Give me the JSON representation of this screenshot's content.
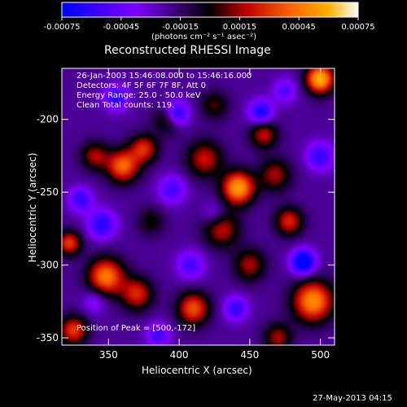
{
  "colorbar": {
    "ticks": [
      "-0.00075",
      "-0.00045",
      "-0.00015",
      "0.00015",
      "0.00045",
      "0.00075"
    ],
    "tick_values": [
      -0.00075,
      -0.00045,
      -0.00015,
      0.00015,
      0.00045,
      0.00075
    ],
    "unit_label": "(photons cm⁻² s⁻¹ asec⁻²)",
    "colors": [
      "#0000ff",
      "#7f00ff",
      "#000000",
      "#c00000",
      "#ff6a00",
      "#ffb000",
      "#ffffff"
    ]
  },
  "title": "Reconstructed RHESSI Image",
  "annotations": {
    "time_range": "26-Jan-2003 15:46:08.000 to 15:46:16.000",
    "detectors": "Detectors: 4F 5F 6F 7F 8F, Att 0",
    "energy": "Energy Range: 25.0 - 50.0 keV",
    "clean": "Clean    Total counts: 119.",
    "peak": "Position of Peak = [500,-172]"
  },
  "footer_timestamp": "27-May-2013 04:15",
  "chart_data": {
    "type": "heatmap",
    "title": "Reconstructed RHESSI Image",
    "xlabel": "Heliocentric X (arcsec)",
    "ylabel": "Heliocentric Y (arcsec)",
    "xlim": [
      317,
      510
    ],
    "ylim": [
      -355,
      -165
    ],
    "xticks": [
      350,
      400,
      450,
      500
    ],
    "yticks": [
      -200,
      -250,
      -300,
      -350
    ],
    "value_range": [
      -0.00075,
      0.00075
    ],
    "peak_position": [
      500,
      -172
    ],
    "blobs": [
      {
        "x": 500,
        "y": -172,
        "v": 0.00075,
        "s": 7
      },
      {
        "x": 442,
        "y": -247,
        "v": 0.0007,
        "s": 8
      },
      {
        "x": 418,
        "y": -227,
        "v": 0.00035,
        "s": 9
      },
      {
        "x": 430,
        "y": -275,
        "v": 0.00035,
        "s": 9
      },
      {
        "x": 360,
        "y": -232,
        "v": 0.00055,
        "s": 8
      },
      {
        "x": 375,
        "y": -220,
        "v": 0.0004,
        "s": 7
      },
      {
        "x": 340,
        "y": -225,
        "v": 0.0003,
        "s": 7
      },
      {
        "x": 348,
        "y": -308,
        "v": 0.0006,
        "s": 9
      },
      {
        "x": 370,
        "y": -320,
        "v": 0.0004,
        "s": 8
      },
      {
        "x": 322,
        "y": -285,
        "v": 0.00045,
        "s": 6
      },
      {
        "x": 325,
        "y": -345,
        "v": 0.00045,
        "s": 7
      },
      {
        "x": 410,
        "y": -330,
        "v": 0.0005,
        "s": 8
      },
      {
        "x": 495,
        "y": -325,
        "v": 0.00065,
        "s": 10
      },
      {
        "x": 478,
        "y": -270,
        "v": 0.0004,
        "s": 7
      },
      {
        "x": 468,
        "y": -238,
        "v": 0.0003,
        "s": 8
      },
      {
        "x": 460,
        "y": -210,
        "v": 0.00035,
        "s": 7
      },
      {
        "x": 392,
        "y": -200,
        "v": 0.00025,
        "s": 7
      },
      {
        "x": 425,
        "y": -190,
        "v": 0.0002,
        "s": 7
      },
      {
        "x": 450,
        "y": -300,
        "v": 0.0003,
        "s": 8
      },
      {
        "x": 470,
        "y": -350,
        "v": 0.0003,
        "s": 7
      },
      {
        "x": 380,
        "y": -270,
        "v": 0.00015,
        "s": 7
      },
      {
        "x": 398,
        "y": -196,
        "v": -0.0006,
        "s": 6
      },
      {
        "x": 355,
        "y": -185,
        "v": -0.0005,
        "s": 6
      },
      {
        "x": 458,
        "y": -195,
        "v": -0.00055,
        "s": 6
      },
      {
        "x": 488,
        "y": -298,
        "v": -0.00075,
        "s": 6
      },
      {
        "x": 345,
        "y": -272,
        "v": -0.0005,
        "s": 7
      },
      {
        "x": 330,
        "y": -255,
        "v": -0.00045,
        "s": 6
      },
      {
        "x": 395,
        "y": -248,
        "v": -0.0004,
        "s": 7
      },
      {
        "x": 408,
        "y": -300,
        "v": -0.0004,
        "s": 7
      },
      {
        "x": 440,
        "y": -330,
        "v": -0.00045,
        "s": 6
      },
      {
        "x": 500,
        "y": -225,
        "v": -0.00045,
        "s": 7
      },
      {
        "x": 385,
        "y": -348,
        "v": -0.0004,
        "s": 6
      },
      {
        "x": 340,
        "y": -325,
        "v": -0.0003,
        "s": 6
      },
      {
        "x": 475,
        "y": -180,
        "v": -0.00035,
        "s": 6
      },
      {
        "x": 425,
        "y": -265,
        "v": -0.0003,
        "s": 6
      }
    ]
  }
}
